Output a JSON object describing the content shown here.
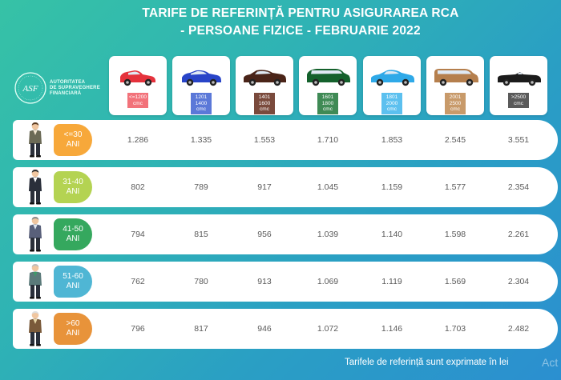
{
  "title_line1": "TARIFE DE REFERINȚĂ PENTRU ASIGURAREA RCA",
  "title_line2": "- PERSOANE FIZICE - FEBRUARIE 2022",
  "logo": {
    "abbr": "ASF",
    "line1": "AUTORITATEA",
    "line2": "DE SUPRAVEGHERE",
    "line3": "FINANCIARĂ"
  },
  "engine_classes": [
    {
      "line1": "<=1200",
      "line2": "",
      "unit": "cmc",
      "car_color": "#e5323c",
      "label_color": "#f2727a",
      "icon": "hatchback-car-icon"
    },
    {
      "line1": "1201",
      "line2": "1400",
      "unit": "cmc",
      "car_color": "#2844c8",
      "label_color": "#5b78d8",
      "icon": "compact-car-icon"
    },
    {
      "line1": "1401",
      "line2": "1600",
      "unit": "cmc",
      "car_color": "#4a2418",
      "label_color": "#7a4a3c",
      "icon": "sedan-car-icon"
    },
    {
      "line1": "1601",
      "line2": "1800",
      "unit": "cmc",
      "car_color": "#14612c",
      "label_color": "#3f8a55",
      "icon": "minivan-car-icon"
    },
    {
      "line1": "1801",
      "line2": "2000",
      "unit": "cmc",
      "car_color": "#2fa9e8",
      "label_color": "#5cc0ef",
      "icon": "coupe-car-icon"
    },
    {
      "line1": "2001",
      "line2": "2500",
      "unit": "cmc",
      "car_color": "#b57f4d",
      "label_color": "#c89a6a",
      "icon": "suv-car-icon"
    },
    {
      "line1": ">2500",
      "line2": "",
      "unit": "cmc",
      "car_color": "#1b1b1b",
      "label_color": "#5a5a5a",
      "icon": "convertible-car-icon"
    }
  ],
  "rows": [
    {
      "age": "<=30",
      "unit": "ANI",
      "badge_color": "#f7a83a",
      "icon": "young-man-icon",
      "values": [
        "1.286",
        "1.335",
        "1.553",
        "1.710",
        "1.853",
        "2.545",
        "3.551"
      ]
    },
    {
      "age": "31-40",
      "unit": "ANI",
      "badge_color": "#b4d352",
      "icon": "man-in-suit-icon",
      "values": [
        "802",
        "789",
        "917",
        "1.045",
        "1.159",
        "1.577",
        "2.354"
      ]
    },
    {
      "age": "41-50",
      "unit": "ANI",
      "badge_color": "#35a85e",
      "icon": "middle-aged-man-icon",
      "values": [
        "794",
        "815",
        "956",
        "1.039",
        "1.140",
        "1.598",
        "2.261"
      ]
    },
    {
      "age": "51-60",
      "unit": "ANI",
      "badge_color": "#4fb6d4",
      "icon": "older-man-icon",
      "values": [
        "762",
        "780",
        "913",
        "1.069",
        "1.119",
        "1.569",
        "2.304"
      ]
    },
    {
      "age": ">60",
      "unit": "ANI",
      "badge_color": "#e8933a",
      "icon": "elderly-man-icon",
      "values": [
        "796",
        "817",
        "946",
        "1.072",
        "1.146",
        "1.703",
        "2.482"
      ]
    }
  ],
  "footer": "Tarifele de referință sunt exprimate în lei",
  "watermark": "Act"
}
